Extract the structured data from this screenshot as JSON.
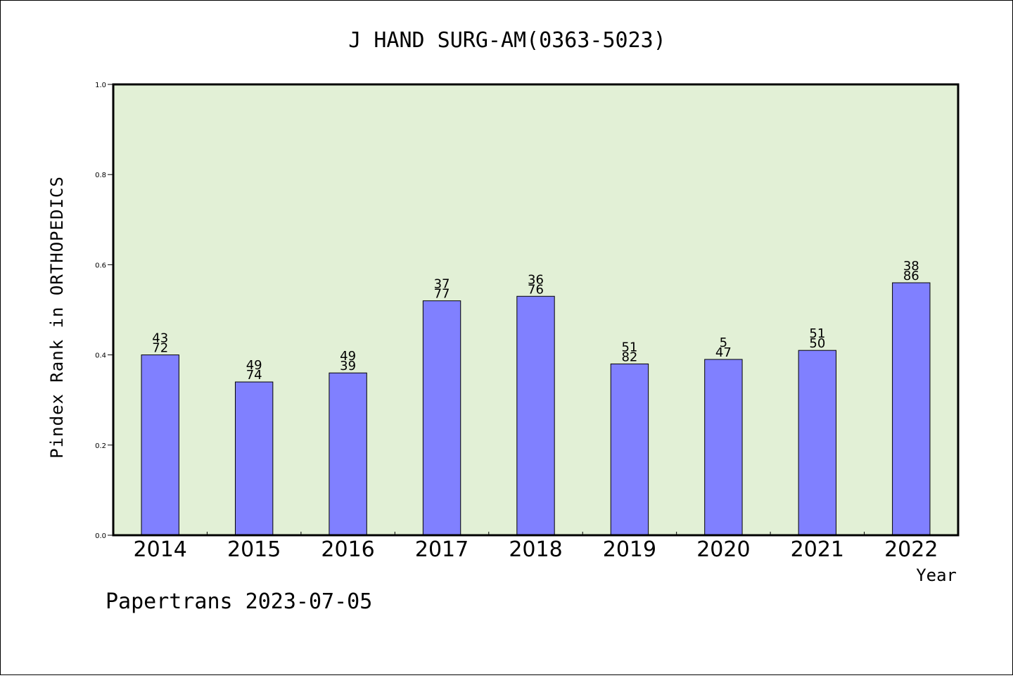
{
  "chart_data": {
    "type": "bar",
    "title": "J HAND SURG-AM(0363-5023)",
    "xlabel": "Year",
    "ylabel": "Pindex Rank in ORTHOPEDICS",
    "ylim": [
      0,
      1.0
    ],
    "yticks": [
      "0.0",
      "0.2",
      "0.4",
      "0.6",
      "0.8",
      "1.0"
    ],
    "categories": [
      "2014",
      "2015",
      "2016",
      "2017",
      "2018",
      "2019",
      "2020",
      "2021",
      "2022"
    ],
    "values": [
      0.4,
      0.34,
      0.36,
      0.52,
      0.53,
      0.38,
      0.39,
      0.41,
      0.56
    ],
    "labels_top": [
      "43",
      "49",
      "49",
      "37",
      "36",
      "51",
      "5",
      "51",
      "38"
    ],
    "labels_bottom": [
      "72",
      "74",
      "39",
      "77",
      "76",
      "82",
      "47",
      "50",
      "86"
    ],
    "grid": false,
    "colors": {
      "bar": "#8080ff",
      "plot_background": "#e2f0d6",
      "border": "#000000"
    }
  },
  "footer": "Papertrans 2023-07-05"
}
